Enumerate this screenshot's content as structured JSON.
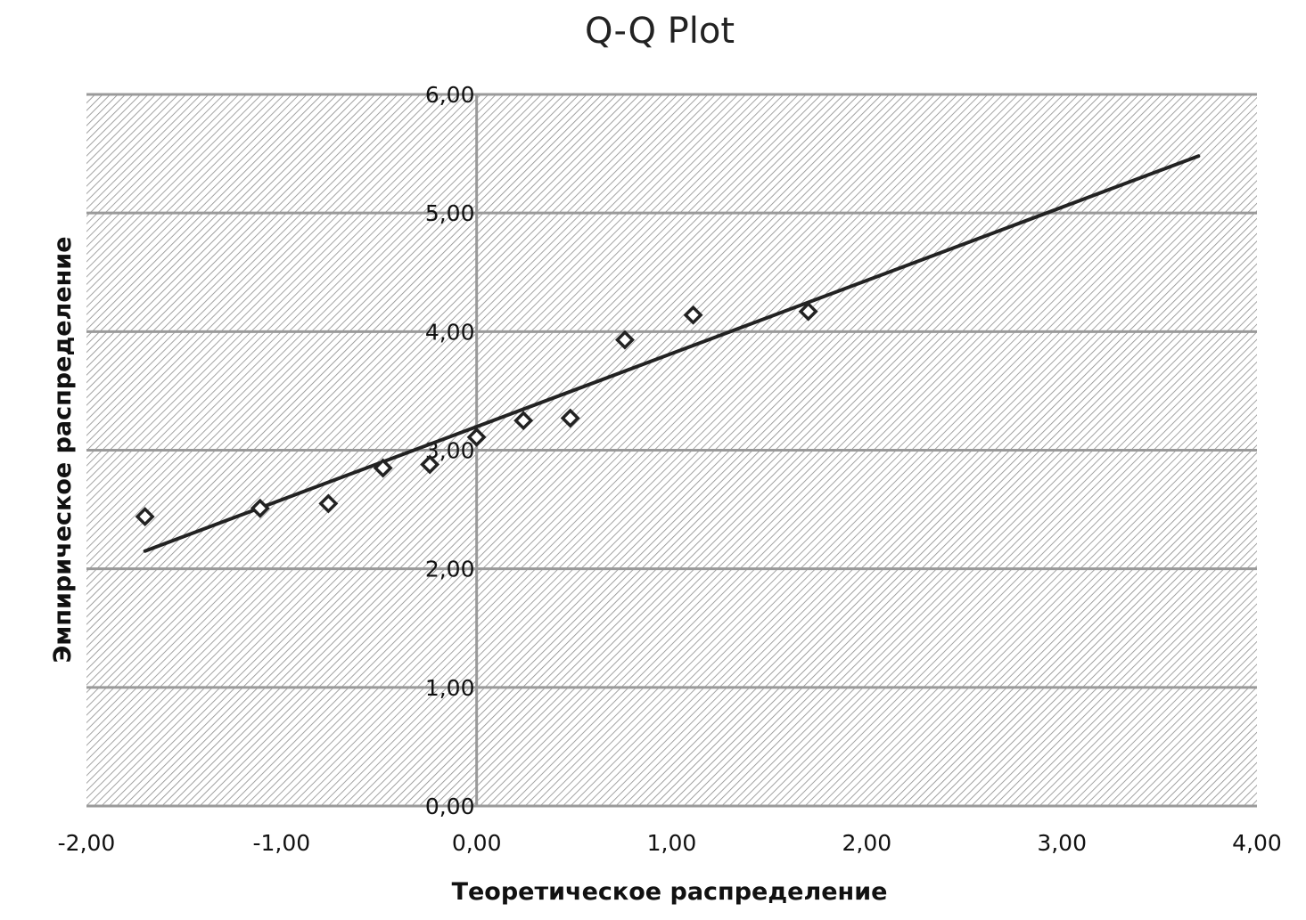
{
  "chart_data": {
    "type": "scatter",
    "title": "Q-Q Plot",
    "xlabel": "Теоретическое распределение",
    "ylabel": "Эмпирическое распределение",
    "xlim": [
      -2,
      4
    ],
    "ylim": [
      0,
      6
    ],
    "x_tick_labels": [
      "-2,00",
      "-1,00",
      "0,00",
      "1,00",
      "2,00",
      "3,00",
      "4,00"
    ],
    "y_tick_labels": [
      "0,00",
      "1,00",
      "2,00",
      "3,00",
      "4,00",
      "5,00",
      "6,00"
    ],
    "grid": true,
    "points": [
      {
        "x": -1.7,
        "y": 2.44
      },
      {
        "x": -1.11,
        "y": 2.51
      },
      {
        "x": -0.76,
        "y": 2.55
      },
      {
        "x": -0.48,
        "y": 2.85
      },
      {
        "x": -0.24,
        "y": 2.88
      },
      {
        "x": 0.0,
        "y": 3.11
      },
      {
        "x": 0.24,
        "y": 3.25
      },
      {
        "x": 0.48,
        "y": 3.27
      },
      {
        "x": 0.76,
        "y": 3.93
      },
      {
        "x": 1.11,
        "y": 4.14
      },
      {
        "x": 1.7,
        "y": 4.17
      }
    ],
    "trendline": {
      "x": [
        -1.7,
        3.7
      ],
      "y": [
        2.15,
        5.48
      ]
    },
    "colors": {
      "marker": "#222222",
      "line": "#222222",
      "grid": "#9a9a9a",
      "hatch": "#8c8c8c"
    }
  }
}
